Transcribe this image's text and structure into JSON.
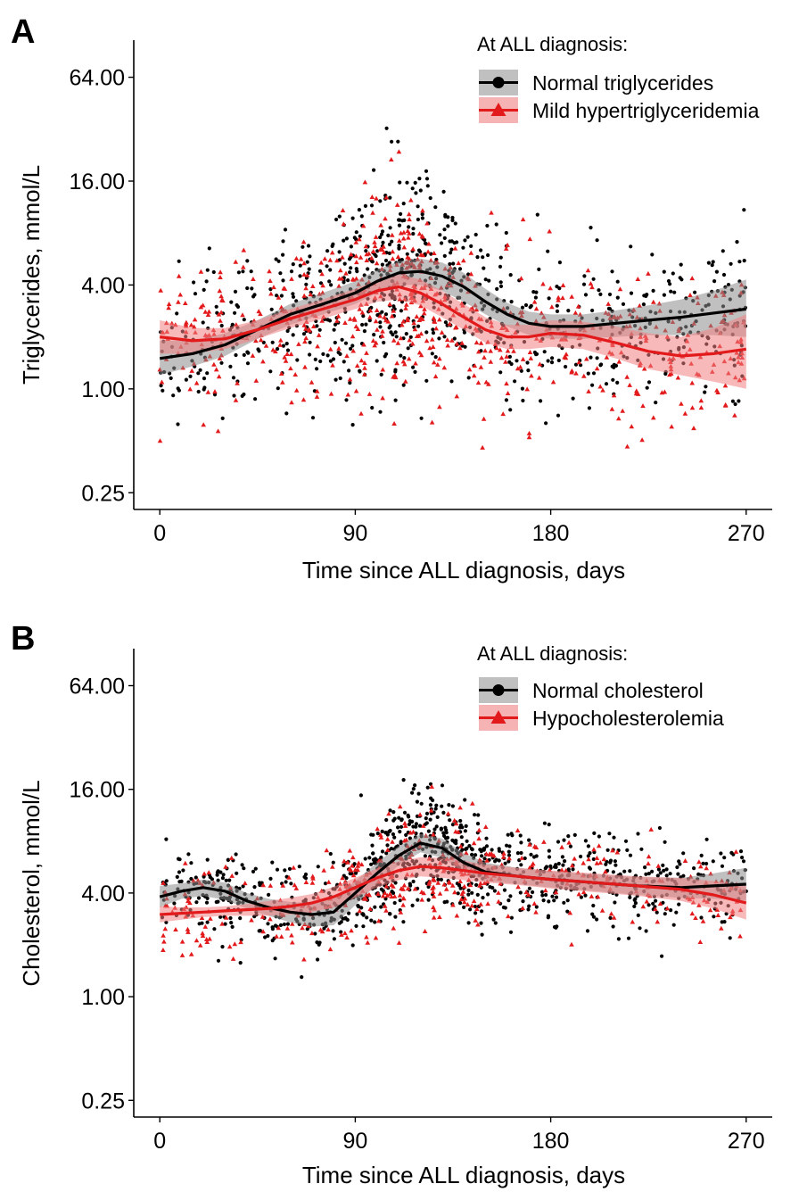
{
  "chart_data": [
    {
      "panel": "A",
      "type": "scatter",
      "xlabel": "Time since ALL diagnosis, days",
      "ylabel": "Triglycerides, mmol/L",
      "y_scale": "log2",
      "xlim": [
        -12,
        282
      ],
      "ylim": [
        0.2,
        105
      ],
      "x_ticks": [
        0,
        90,
        180,
        270
      ],
      "x_tick_labels": [
        "0",
        "90",
        "180",
        "270"
      ],
      "y_ticks": [
        0.25,
        1,
        4,
        16,
        64
      ],
      "y_tick_labels": [
        "0.25",
        "1.00",
        "4.00",
        "16.00",
        "64.00"
      ],
      "grid": false,
      "legend": {
        "title": "At ALL diagnosis:",
        "placement": "top-right",
        "entries": [
          "Normal triglycerides",
          "Mild hypertriglyceridemia"
        ]
      },
      "series": [
        {
          "name": "Normal triglycerides",
          "color": "#000000",
          "band_color": "#8c8c8c",
          "marker": "circle",
          "trend": {
            "x": [
              0,
              15,
              30,
              45,
              60,
              75,
              90,
              100,
              110,
              120,
              130,
              140,
              150,
              160,
              170,
              180,
              195,
              210,
              225,
              240,
              255,
              270
            ],
            "y": [
              1.5,
              1.6,
              1.8,
              2.2,
              2.7,
              3.1,
              3.6,
              4.2,
              4.7,
              4.8,
              4.5,
              3.9,
              3.2,
              2.7,
              2.4,
              2.3,
              2.3,
              2.4,
              2.5,
              2.6,
              2.75,
              2.9
            ],
            "lower": [
              1.2,
              1.35,
              1.55,
              1.95,
              2.35,
              2.7,
              3.1,
              3.6,
              4.0,
              4.0,
              3.7,
              3.2,
              2.7,
              2.3,
              2.05,
              1.95,
              1.95,
              2.0,
              2.05,
              2.05,
              2.05,
              2.0
            ],
            "upper": [
              1.9,
              1.9,
              2.1,
              2.5,
              3.1,
              3.6,
              4.2,
              4.9,
              5.5,
              5.7,
              5.4,
              4.7,
              3.8,
              3.15,
              2.8,
              2.7,
              2.7,
              2.85,
              3.05,
              3.3,
              3.7,
              4.3
            ]
          },
          "points": {
            "count": 850,
            "peak_day": 110,
            "log2_sd": 1.35
          }
        },
        {
          "name": "Mild hypertriglyceridemia",
          "color": "#e31a1c",
          "band_color": "#f08080",
          "marker": "triangle",
          "trend": {
            "x": [
              0,
              15,
              30,
              45,
              60,
              75,
              90,
              100,
              110,
              120,
              130,
              140,
              150,
              160,
              170,
              180,
              195,
              210,
              225,
              240,
              255,
              270
            ],
            "y": [
              2.0,
              1.9,
              1.95,
              2.2,
              2.55,
              2.9,
              3.3,
              3.7,
              3.9,
              3.6,
              3.1,
              2.6,
              2.2,
              2.0,
              2.0,
              2.1,
              2.05,
              1.85,
              1.65,
              1.55,
              1.6,
              1.7
            ],
            "lower": [
              1.6,
              1.6,
              1.7,
              1.95,
              2.25,
              2.55,
              2.9,
              3.2,
              3.3,
              3.05,
              2.6,
              2.2,
              1.85,
              1.7,
              1.7,
              1.75,
              1.7,
              1.5,
              1.3,
              1.2,
              1.1,
              1.0
            ],
            "upper": [
              2.5,
              2.25,
              2.25,
              2.5,
              2.9,
              3.3,
              3.8,
              4.25,
              4.6,
              4.3,
              3.7,
              3.1,
              2.6,
              2.35,
              2.35,
              2.5,
              2.45,
              2.3,
              2.1,
              2.0,
              2.25,
              2.7
            ]
          },
          "points": {
            "count": 700,
            "peak_day": 110,
            "log2_sd": 1.3
          }
        }
      ]
    },
    {
      "panel": "B",
      "type": "scatter",
      "xlabel": "Time since ALL diagnosis, days",
      "ylabel": "Cholesterol, mmol/L",
      "y_scale": "log2",
      "xlim": [
        -12,
        282
      ],
      "ylim": [
        0.2,
        105
      ],
      "x_ticks": [
        0,
        90,
        180,
        270
      ],
      "x_tick_labels": [
        "0",
        "90",
        "180",
        "270"
      ],
      "y_ticks": [
        0.25,
        1,
        4,
        16,
        64
      ],
      "y_tick_labels": [
        "0.25",
        "1.00",
        "4.00",
        "16.00",
        "64.00"
      ],
      "grid": false,
      "legend": {
        "title": "At ALL diagnosis:",
        "placement": "top-right",
        "entries": [
          "Normal cholesterol",
          "Hypocholesterolemia"
        ]
      },
      "series": [
        {
          "name": "Normal cholesterol",
          "color": "#000000",
          "band_color": "#8c8c8c",
          "marker": "circle",
          "trend": {
            "x": [
              0,
              10,
              20,
              30,
              40,
              50,
              60,
              70,
              80,
              90,
              100,
              110,
              120,
              130,
              140,
              150,
              165,
              180,
              200,
              220,
              240,
              255,
              270
            ],
            "y": [
              3.8,
              4.1,
              4.3,
              4.1,
              3.6,
              3.3,
              3.1,
              3.0,
              3.1,
              4.0,
              5.2,
              6.6,
              7.8,
              7.3,
              6.0,
              5.3,
              5.0,
              4.8,
              4.6,
              4.4,
              4.3,
              4.4,
              4.5
            ],
            "lower": [
              3.3,
              3.7,
              3.85,
              3.65,
              3.25,
              2.95,
              2.7,
              2.55,
              2.6,
              3.4,
              4.5,
              5.8,
              6.9,
              6.4,
              5.3,
              4.7,
              4.5,
              4.3,
              4.1,
              3.9,
              3.75,
              3.7,
              3.6
            ],
            "upper": [
              4.4,
              4.55,
              4.8,
              4.6,
              4.0,
              3.7,
              3.55,
              3.5,
              3.7,
              4.7,
              6.0,
              7.5,
              8.8,
              8.3,
              6.8,
              6.0,
              5.6,
              5.35,
              5.15,
              4.95,
              4.9,
              5.2,
              5.6
            ]
          },
          "points": {
            "count": 1000,
            "peak_day": 120,
            "log2_sd": 0.75
          }
        },
        {
          "name": "Hypocholesterolemia",
          "color": "#e31a1c",
          "band_color": "#f08080",
          "marker": "triangle",
          "trend": {
            "x": [
              0,
              10,
              20,
              30,
              40,
              50,
              60,
              70,
              80,
              90,
              100,
              110,
              120,
              130,
              140,
              150,
              165,
              180,
              200,
              220,
              240,
              255,
              270
            ],
            "y": [
              3.0,
              3.05,
              3.1,
              3.15,
              3.2,
              3.25,
              3.35,
              3.5,
              3.8,
              4.3,
              4.9,
              5.4,
              5.7,
              5.6,
              5.4,
              5.2,
              5.0,
              4.8,
              4.6,
              4.4,
              4.2,
              3.9,
              3.5
            ],
            "lower": [
              2.7,
              2.8,
              2.9,
              2.95,
              2.95,
              2.95,
              3.0,
              3.1,
              3.3,
              3.75,
              4.3,
              4.75,
              5.0,
              4.9,
              4.75,
              4.6,
              4.45,
              4.25,
              4.05,
              3.85,
              3.6,
              3.25,
              2.8
            ],
            "upper": [
              3.35,
              3.3,
              3.3,
              3.35,
              3.45,
              3.6,
              3.75,
              3.95,
              4.35,
              4.9,
              5.55,
              6.1,
              6.45,
              6.4,
              6.15,
              5.85,
              5.6,
              5.4,
              5.2,
              5.0,
              4.9,
              4.7,
              4.4
            ]
          },
          "points": {
            "count": 450,
            "peak_day": 120,
            "log2_sd": 0.8
          }
        }
      ]
    }
  ]
}
